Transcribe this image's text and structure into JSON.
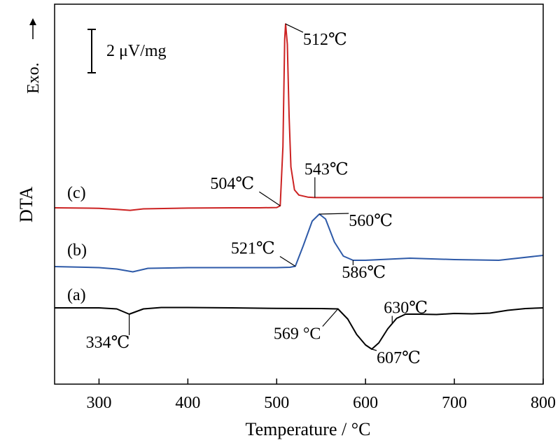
{
  "chart_data": {
    "type": "line",
    "xlabel": "Temperature / °C",
    "ylabel": "DTA",
    "exo_label": "Exo.",
    "scale_bar_label": "2 μV/mg",
    "xlim": [
      250,
      800
    ],
    "xticks": [
      300,
      400,
      500,
      600,
      700,
      800
    ],
    "y_units": "relative (stacked curves)",
    "grid": false,
    "series": [
      {
        "name": "(a)",
        "color": "#000000",
        "x": [
          250,
          300,
          320,
          334,
          350,
          370,
          400,
          450,
          500,
          550,
          569,
          580,
          590,
          600,
          607,
          615,
          625,
          635,
          645,
          660,
          680,
          700,
          720,
          740,
          760,
          780,
          800
        ],
        "y": [
          0.0,
          0.0,
          -0.15,
          -0.9,
          -0.15,
          0.05,
          0.05,
          0.0,
          -0.08,
          -0.1,
          -0.15,
          -1.6,
          -3.8,
          -5.3,
          -5.9,
          -5.0,
          -3.0,
          -1.5,
          -0.9,
          -0.9,
          -0.95,
          -0.8,
          -0.85,
          -0.75,
          -0.35,
          -0.1,
          0.0
        ],
        "annotations": [
          {
            "label": "334℃",
            "x": 334
          },
          {
            "label": "569 °C",
            "x": 569
          },
          {
            "label": "607℃",
            "x": 607
          },
          {
            "label": "630℃",
            "x": 630
          }
        ]
      },
      {
        "name": "(b)",
        "color": "#2e5aa8",
        "x": [
          250,
          300,
          320,
          338,
          355,
          400,
          450,
          500,
          515,
          521,
          530,
          540,
          548,
          555,
          565,
          575,
          586,
          600,
          650,
          700,
          750,
          800
        ],
        "y": [
          0.0,
          -0.15,
          -0.35,
          -0.75,
          -0.25,
          -0.15,
          -0.15,
          -0.15,
          -0.1,
          0.05,
          3.0,
          6.5,
          7.5,
          6.8,
          3.5,
          1.5,
          0.9,
          0.9,
          1.2,
          1.0,
          0.9,
          1.6
        ],
        "annotations": [
          {
            "label": "521℃",
            "x": 521
          },
          {
            "label": "560℃",
            "x": 548
          },
          {
            "label": "586℃",
            "x": 586
          }
        ]
      },
      {
        "name": "(c)",
        "color": "#cc2222",
        "x": [
          250,
          300,
          320,
          335,
          350,
          400,
          450,
          480,
          500,
          504,
          507,
          509,
          510,
          512,
          514,
          516,
          520,
          525,
          535,
          543,
          560,
          600,
          700,
          750,
          800
        ],
        "y": [
          0.0,
          -0.1,
          -0.3,
          -0.5,
          -0.2,
          -0.05,
          0.0,
          0.0,
          0.05,
          0.4,
          12.0,
          33.0,
          36.0,
          32.0,
          18.0,
          8.0,
          3.5,
          2.5,
          2.1,
          2.0,
          2.0,
          2.0,
          2.0,
          2.0,
          2.0
        ],
        "annotations": [
          {
            "label": "504℃",
            "x": 504
          },
          {
            "label": "512℃",
            "x": 510
          },
          {
            "label": "543℃",
            "x": 543
          }
        ]
      }
    ]
  }
}
